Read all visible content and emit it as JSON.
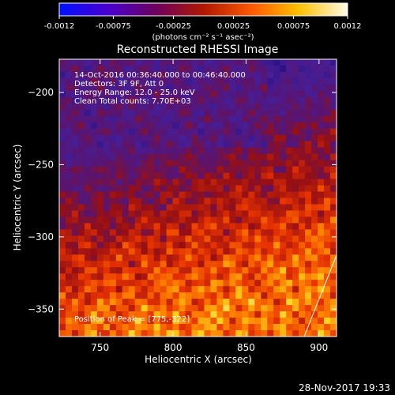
{
  "chart_data": {
    "type": "heatmap",
    "title": "Reconstructed RHESSI Image",
    "xlabel": "Heliocentric X (arcsec)",
    "ylabel": "Heliocentric Y (arcsec)",
    "xlim": [
      722,
      912
    ],
    "ylim": [
      -369,
      -177
    ],
    "xticks": [
      750,
      800,
      850,
      900
    ],
    "yticks": [
      -200,
      -250,
      -300,
      -350
    ],
    "info_lines": [
      "14-Oct-2016 00:36:40.000 to 00:46:40.000",
      "Detectors: 3F 9F, Att 0",
      "Energy Range: 12.0 - 25.0 keV",
      "Clean     Total counts: 7.70E+03"
    ],
    "peak_text": "Position of Peak = [775,-322]",
    "peak": [
      775,
      -322
    ],
    "colorbar": {
      "range": [
        -0.0012,
        0.0012
      ],
      "tick_labels": [
        "-0.0012",
        "-0.00075",
        "-0.00025",
        "0.00025",
        "0.00075",
        "0.0012"
      ],
      "tick_values": [
        -0.0012,
        -0.00075,
        -0.00025,
        0.00025,
        0.00075,
        0.0012
      ],
      "units_label": "(photons cm⁻² s⁻¹ asec⁻²)",
      "colors": [
        "#0010ff",
        "#5a00a8",
        "#8a0a3a",
        "#d42000",
        "#ff7a00",
        "#ffd800",
        "#fffdf0"
      ]
    },
    "grid": false,
    "footer_date": "28-Nov-2017 19:33"
  }
}
